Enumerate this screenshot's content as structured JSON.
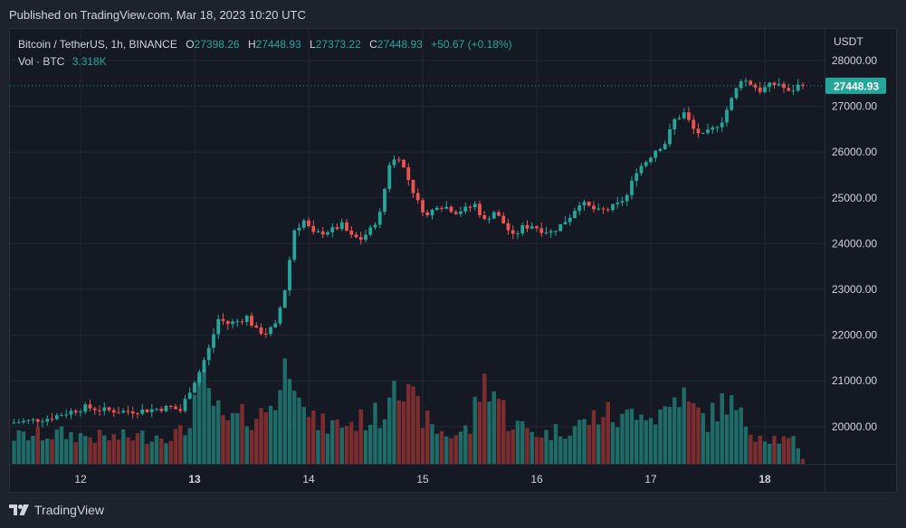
{
  "header": {
    "published": "Published on TradingView.com, Mar 18, 2023 10:20 UTC"
  },
  "legend": {
    "symbol": "Bitcoin / TetherUS, 1h, BINANCE",
    "o_label": "O",
    "o": "27398.26",
    "h_label": "H",
    "h": "27448.93",
    "l_label": "L",
    "l": "27373.22",
    "c_label": "C",
    "c": "27448.93",
    "change": "+50.67 (+0.18%)",
    "vol_label": "Vol · BTC",
    "vol": "3.318K"
  },
  "footer": {
    "brand": "TradingView",
    "logo_icon": "tradingview-logo-icon"
  },
  "colors": {
    "up": "#26a69a",
    "down": "#ef5350",
    "up_vol": "#1f6b67",
    "down_vol": "#7d2d2f",
    "grid": "#232735",
    "text": "#d1d4dc",
    "price_tag": "#26a69a"
  },
  "chart_data": {
    "type": "candlestick",
    "currency": "USDT",
    "ylim": [
      19200,
      28350
    ],
    "y_ticks": [
      20000,
      21000,
      22000,
      23000,
      24000,
      25000,
      26000,
      27000,
      28000
    ],
    "y_tick_labels": [
      "20000.00",
      "21000.00",
      "22000.00",
      "23000.00",
      "24000.00",
      "25000.00",
      "26000.00",
      "27000.00",
      "28000.00"
    ],
    "x_ticks": [
      "12",
      "13",
      "14",
      "15",
      "16",
      "17",
      "18"
    ],
    "x_tick_hours": [
      14,
      38,
      62,
      86,
      110,
      134,
      158
    ],
    "last_price": 27448.93,
    "last_price_label": "27448.93",
    "price_anchors": [
      [
        0,
        20080
      ],
      [
        4,
        20120
      ],
      [
        8,
        20180
      ],
      [
        12,
        20300
      ],
      [
        16,
        20420
      ],
      [
        20,
        20360
      ],
      [
        24,
        20330
      ],
      [
        28,
        20350
      ],
      [
        32,
        20400
      ],
      [
        34,
        20420
      ],
      [
        36,
        20350
      ],
      [
        38,
        20800
      ],
      [
        40,
        21200
      ],
      [
        42,
        21700
      ],
      [
        44,
        22350
      ],
      [
        46,
        22250
      ],
      [
        48,
        22300
      ],
      [
        50,
        22400
      ],
      [
        52,
        22100
      ],
      [
        54,
        22050
      ],
      [
        56,
        22200
      ],
      [
        58,
        23000
      ],
      [
        60,
        24300
      ],
      [
        62,
        24500
      ],
      [
        64,
        24200
      ],
      [
        66,
        24250
      ],
      [
        68,
        24300
      ],
      [
        70,
        24400
      ],
      [
        72,
        24150
      ],
      [
        74,
        24100
      ],
      [
        76,
        24300
      ],
      [
        78,
        24650
      ],
      [
        80,
        25750
      ],
      [
        82,
        25900
      ],
      [
        84,
        25400
      ],
      [
        86,
        24900
      ],
      [
        88,
        24600
      ],
      [
        90,
        24850
      ],
      [
        92,
        24800
      ],
      [
        94,
        24700
      ],
      [
        96,
        24750
      ],
      [
        98,
        24850
      ],
      [
        100,
        24500
      ],
      [
        102,
        24700
      ],
      [
        104,
        24450
      ],
      [
        106,
        24150
      ],
      [
        108,
        24350
      ],
      [
        110,
        24400
      ],
      [
        112,
        24300
      ],
      [
        114,
        24250
      ],
      [
        116,
        24400
      ],
      [
        118,
        24600
      ],
      [
        120,
        24900
      ],
      [
        122,
        24800
      ],
      [
        124,
        24700
      ],
      [
        126,
        24750
      ],
      [
        128,
        24850
      ],
      [
        130,
        25050
      ],
      [
        132,
        25600
      ],
      [
        134,
        25800
      ],
      [
        136,
        26050
      ],
      [
        138,
        26200
      ],
      [
        140,
        26700
      ],
      [
        142,
        26850
      ],
      [
        144,
        26500
      ],
      [
        146,
        26350
      ],
      [
        148,
        26500
      ],
      [
        150,
        26700
      ],
      [
        152,
        27150
      ],
      [
        154,
        27600
      ],
      [
        156,
        27500
      ],
      [
        158,
        27350
      ],
      [
        160,
        27450
      ],
      [
        162,
        27500
      ],
      [
        164,
        27300
      ],
      [
        166,
        27449
      ]
    ],
    "volume_anchors": [
      [
        0,
        2.0
      ],
      [
        10,
        2.2
      ],
      [
        20,
        1.9
      ],
      [
        30,
        2.1
      ],
      [
        36,
        2.3
      ],
      [
        38,
        4.8
      ],
      [
        40,
        5.6
      ],
      [
        42,
        4.5
      ],
      [
        44,
        3.0
      ],
      [
        48,
        3.4
      ],
      [
        52,
        3.6
      ],
      [
        56,
        5.4
      ],
      [
        58,
        8.2
      ],
      [
        60,
        6.8
      ],
      [
        62,
        3.2
      ],
      [
        66,
        2.8
      ],
      [
        72,
        3.1
      ],
      [
        78,
        3.7
      ],
      [
        80,
        8.1
      ],
      [
        82,
        5.2
      ],
      [
        84,
        4.4
      ],
      [
        86,
        3.6
      ],
      [
        88,
        2.6
      ],
      [
        92,
        2.1
      ],
      [
        96,
        2.6
      ],
      [
        98,
        5.5
      ],
      [
        100,
        6.2
      ],
      [
        102,
        4.8
      ],
      [
        104,
        3.2
      ],
      [
        108,
        2.5
      ],
      [
        112,
        2.2
      ],
      [
        116,
        2.6
      ],
      [
        120,
        3.0
      ],
      [
        124,
        3.8
      ],
      [
        128,
        3.1
      ],
      [
        132,
        4.6
      ],
      [
        134,
        3.4
      ],
      [
        138,
        4.2
      ],
      [
        140,
        5.4
      ],
      [
        142,
        4.2
      ],
      [
        146,
        3.2
      ],
      [
        150,
        4.8
      ],
      [
        152,
        3.7
      ],
      [
        154,
        3.0
      ],
      [
        156,
        2.3
      ],
      [
        160,
        1.9
      ],
      [
        164,
        1.6
      ],
      [
        166,
        0.4
      ]
    ]
  }
}
